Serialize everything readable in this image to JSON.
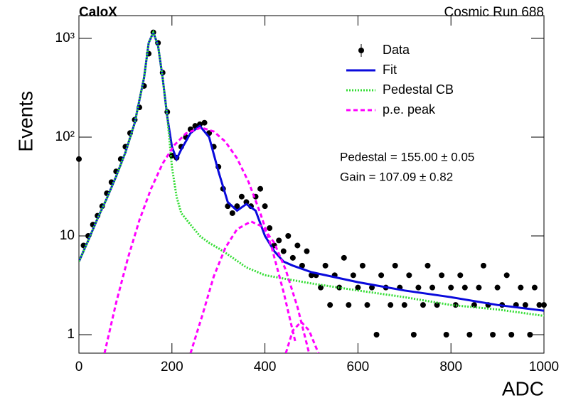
{
  "chart_data": {
    "type": "scatter",
    "title": "CaloX",
    "subtitle": "Cosmic Run 688",
    "x_label": "ADC",
    "y_label": "Events",
    "log_y": true,
    "xlim": [
      0,
      1000
    ],
    "ylim": [
      0.65,
      1700
    ],
    "xticks": [
      0,
      200,
      400,
      600,
      800,
      1000
    ],
    "yticks": [
      1,
      10,
      {
        "value": 100,
        "label": "10²"
      },
      {
        "value": 1000,
        "label": "10³"
      }
    ],
    "annotations": [
      "Pedestal = 155.00 ± 0.05",
      "Gain = 107.09 ± 0.82"
    ],
    "series": [
      {
        "name": "Data",
        "color": "#000000",
        "mode": "markers",
        "x": [
          0,
          10,
          20,
          30,
          40,
          50,
          60,
          70,
          80,
          90,
          100,
          110,
          120,
          130,
          140,
          150,
          160,
          170,
          180,
          190,
          200,
          210,
          220,
          230,
          240,
          250,
          260,
          270,
          280,
          290,
          300,
          310,
          320,
          330,
          340,
          350,
          360,
          370,
          380,
          390,
          400,
          410,
          420,
          430,
          440,
          450,
          460,
          470,
          480,
          490,
          500,
          510,
          520,
          530,
          540,
          550,
          560,
          570,
          580,
          590,
          600,
          610,
          620,
          630,
          640,
          650,
          660,
          670,
          680,
          690,
          700,
          710,
          720,
          730,
          740,
          750,
          760,
          770,
          780,
          790,
          800,
          810,
          820,
          830,
          840,
          850,
          860,
          870,
          880,
          890,
          900,
          910,
          920,
          930,
          940,
          950,
          960,
          970,
          980,
          990,
          1000
        ],
        "values": [
          60,
          8,
          10,
          13,
          16,
          20,
          27,
          35,
          45,
          60,
          80,
          110,
          150,
          200,
          330,
          700,
          1150,
          900,
          450,
          180,
          65,
          62,
          80,
          100,
          120,
          130,
          135,
          140,
          110,
          80,
          50,
          30,
          20,
          17,
          20,
          25,
          22,
          20,
          25,
          30,
          20,
          12,
          8,
          9,
          7,
          10,
          6,
          8,
          5,
          7,
          4,
          4,
          3,
          5,
          2,
          4,
          3,
          6,
          2,
          4,
          3,
          5,
          2,
          3,
          1,
          4,
          3,
          2,
          5,
          3,
          2,
          4,
          1,
          3,
          2,
          5,
          3,
          2,
          4,
          1,
          3,
          2,
          4,
          3,
          1,
          2,
          3,
          5,
          2,
          1,
          3,
          2,
          4,
          1,
          2,
          3,
          2,
          1,
          3,
          2,
          2
        ]
      },
      {
        "name": "Fit",
        "color": "#0a0adc",
        "mode": "line",
        "dash": "none",
        "x": [
          0,
          20,
          40,
          60,
          80,
          100,
          120,
          140,
          150,
          160,
          170,
          180,
          190,
          200,
          210,
          220,
          240,
          260,
          280,
          300,
          320,
          340,
          360,
          380,
          400,
          420,
          440,
          460,
          500,
          600,
          700,
          800,
          900,
          1000
        ],
        "values": [
          5.5,
          9,
          15,
          24,
          40,
          70,
          140,
          400,
          900,
          1150,
          850,
          400,
          160,
          80,
          60,
          75,
          110,
          130,
          100,
          45,
          22,
          18,
          21,
          18,
          10,
          7,
          5.5,
          5,
          4.3,
          3.4,
          2.8,
          2.4,
          2.0,
          1.75
        ]
      },
      {
        "name": "Pedestal CB",
        "color": "#33dd33",
        "mode": "line",
        "dash": "2 2",
        "x": [
          0,
          20,
          40,
          60,
          80,
          100,
          120,
          140,
          150,
          160,
          170,
          180,
          190,
          200,
          210,
          220,
          240,
          260,
          280,
          300,
          320,
          360,
          400,
          500,
          600,
          700,
          800,
          900,
          1000
        ],
        "values": [
          5.5,
          9,
          15,
          24,
          40,
          70,
          140,
          400,
          900,
          1150,
          850,
          400,
          160,
          50,
          25,
          17,
          13,
          10,
          8.5,
          7.5,
          6.5,
          4.8,
          4,
          3.3,
          2.8,
          2.4,
          2.0,
          1.8,
          1.55
        ]
      },
      {
        "name": "p.e. peak",
        "color": "#ff00ff",
        "mode": "line",
        "dash": "6 4",
        "x": [
          55,
          80,
          105,
          130,
          155,
          180,
          205,
          230,
          263,
          290,
          315,
          340,
          365,
          390,
          415,
          440,
          465,
          null,
          240,
          265,
          290,
          315,
          340,
          370,
          395,
          420,
          445,
          470,
          495,
          null,
          445,
          460,
          478,
          495,
          515
        ],
        "values": [
          0.65,
          2.1,
          5.9,
          14.4,
          30,
          54,
          83,
          109,
          125,
          114,
          90,
          61,
          35,
          17,
          7.5,
          2.7,
          0.86,
          null,
          0.65,
          1.55,
          3.9,
          7.6,
          11.7,
          14,
          12.4,
          8.5,
          4.5,
          1.9,
          0.65,
          null,
          0.65,
          1.1,
          1.35,
          1.1,
          0.65
        ]
      }
    ]
  }
}
